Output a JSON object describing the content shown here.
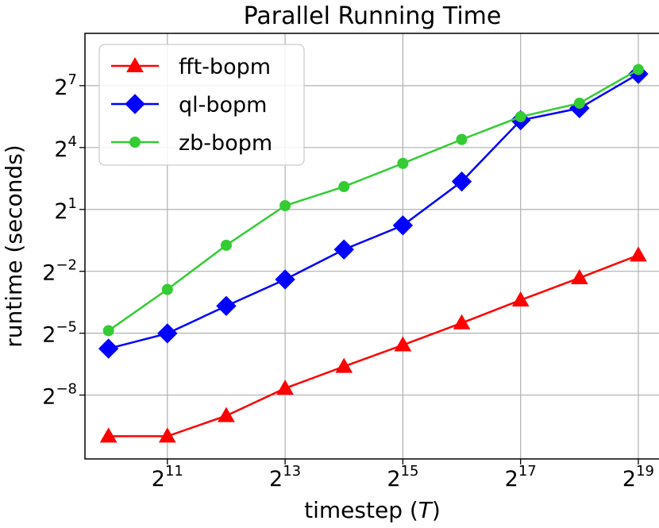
{
  "chart_data": {
    "type": "line",
    "title": "Parallel Running Time",
    "xlabel": "timestep (",
    "xlabel_var": "T",
    "xlabel_end": ")",
    "ylabel": "runtime (seconds)",
    "x_scale": "log2",
    "y_scale": "log2",
    "x": [
      1024,
      2048,
      4096,
      8192,
      16384,
      32768,
      65536,
      131072,
      262144,
      524288
    ],
    "xlim": [
      776,
      675000
    ],
    "ylim": [
      0.000457,
      742
    ],
    "x_ticks": [
      {
        "base": "2",
        "exp": "11",
        "value": 2048
      },
      {
        "base": "2",
        "exp": "13",
        "value": 8192
      },
      {
        "base": "2",
        "exp": "15",
        "value": 32768
      },
      {
        "base": "2",
        "exp": "17",
        "value": 131072
      },
      {
        "base": "2",
        "exp": "19",
        "value": 524288
      }
    ],
    "y_ticks": [
      {
        "base": "2",
        "exp": "7",
        "value": 128
      },
      {
        "base": "2",
        "exp": "4",
        "value": 16
      },
      {
        "base": "2",
        "exp": "1",
        "value": 2
      },
      {
        "base": "2",
        "exp": "−2",
        "value": 0.25
      },
      {
        "base": "2",
        "exp": "−5",
        "value": 0.03125
      },
      {
        "base": "2",
        "exp": "−8",
        "value": 0.00390625
      }
    ],
    "grid": true,
    "legend_position": "top-left",
    "series": [
      {
        "name": "fft-bopm",
        "color": "#ff0000",
        "marker": "triangle",
        "values": [
          0.00098,
          0.00098,
          0.00195,
          0.0049,
          0.0102,
          0.021,
          0.044,
          0.095,
          0.2,
          0.43
        ]
      },
      {
        "name": "ql-bopm",
        "color": "#0000ff",
        "marker": "diamond",
        "values": [
          0.0186,
          0.031,
          0.078,
          0.19,
          0.52,
          1.17,
          5.1,
          40,
          60,
          190
        ]
      },
      {
        "name": "zb-bopm",
        "color": "#33cc33",
        "marker": "circle",
        "values": [
          0.034,
          0.136,
          0.6,
          2.27,
          4.3,
          9.4,
          21,
          45,
          71,
          220
        ]
      }
    ]
  }
}
